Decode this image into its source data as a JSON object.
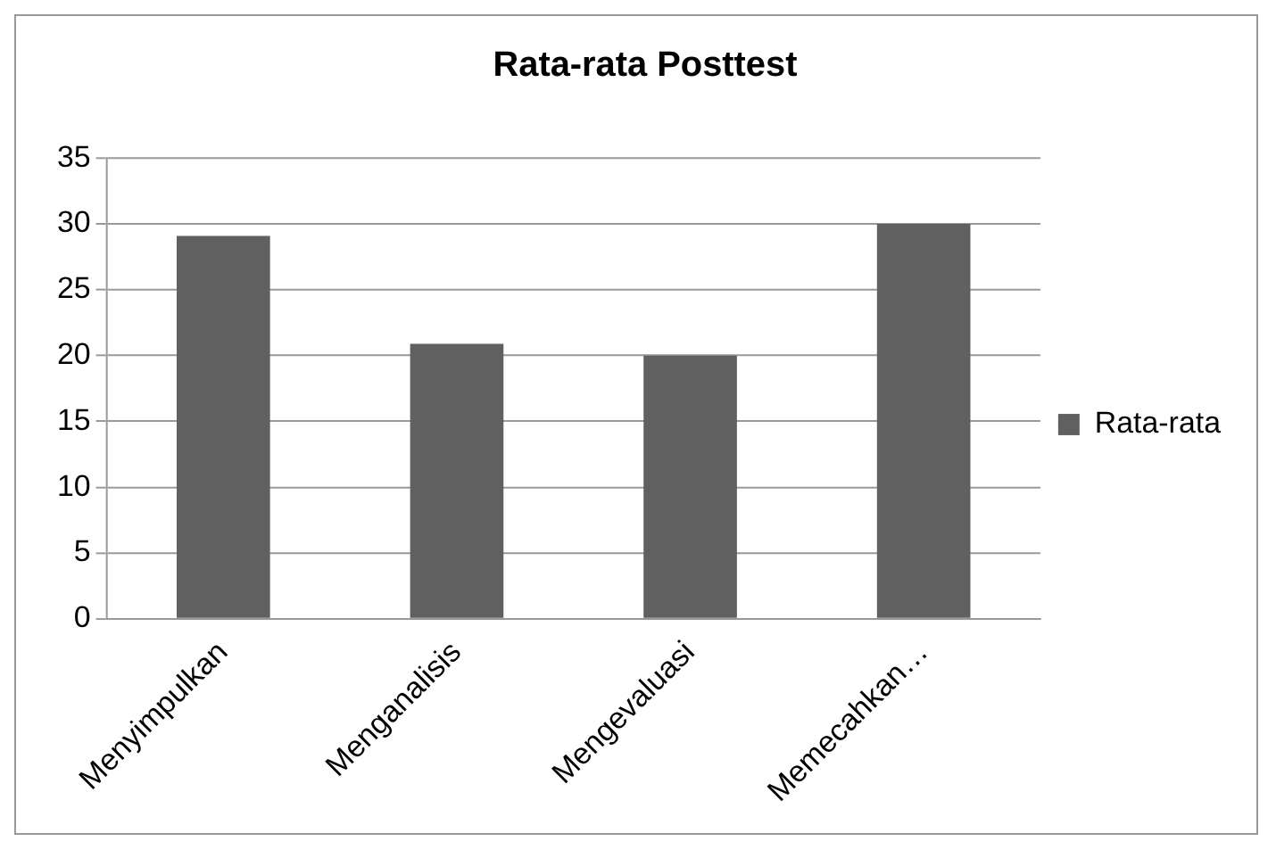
{
  "chart_data": {
    "type": "bar",
    "title": "Rata-rata Posttest",
    "categories": [
      "Menyimpulkan",
      "Menganalisis",
      "Mengevaluasi",
      "Memecahkan…"
    ],
    "series": [
      {
        "name": "Rata-rata",
        "color": "#606060",
        "values": [
          29.1,
          20.9,
          20,
          30
        ]
      }
    ],
    "ylim": [
      0,
      35
    ],
    "yticks": [
      0,
      5,
      10,
      15,
      20,
      25,
      30,
      35
    ],
    "grid": "y",
    "legend": "right"
  }
}
